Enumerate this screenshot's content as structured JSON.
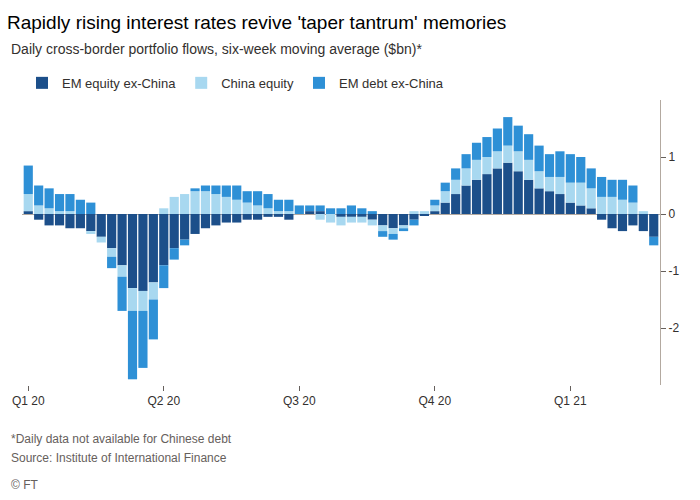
{
  "chart_data": {
    "type": "bar",
    "title": "Rapidly rising interest rates revive 'taper tantrum' memories",
    "subtitle": "Daily cross-border portfolio flows, six-week moving average ($bn)*",
    "annotations": [
      "*Daily data not available for Chinese debt",
      "Source: Institute of International Finance",
      "© FT"
    ],
    "stacked": true,
    "legend": "top left",
    "grid": false,
    "categories": [
      "Q1 20",
      null,
      null,
      null,
      null,
      null,
      null,
      null,
      null,
      null,
      null,
      null,
      null,
      "Q2 20",
      null,
      null,
      null,
      null,
      null,
      null,
      null,
      null,
      null,
      null,
      null,
      null,
      "Q3 20",
      null,
      null,
      null,
      null,
      null,
      null,
      null,
      null,
      null,
      null,
      null,
      null,
      "Q4 20",
      null,
      null,
      null,
      null,
      null,
      null,
      null,
      null,
      null,
      null,
      null,
      null,
      "Q1 21",
      null,
      null,
      null,
      null,
      null,
      null,
      null,
      null
    ],
    "series": [
      {
        "name": "EM equity ex-China",
        "color": "#1c4f8a",
        "values": [
          0.05,
          -0.1,
          -0.2,
          -0.2,
          -0.25,
          -0.25,
          -0.3,
          -0.4,
          -0.6,
          -0.9,
          -1.3,
          -1.35,
          -1.2,
          -0.9,
          -0.6,
          -0.45,
          -0.35,
          -0.25,
          -0.2,
          -0.15,
          -0.15,
          -0.1,
          -0.1,
          -0.05,
          -0.05,
          -0.1,
          0.0,
          0.05,
          0.05,
          0.0,
          -0.05,
          -0.05,
          -0.05,
          -0.1,
          -0.2,
          -0.25,
          -0.2,
          -0.1,
          -0.02,
          0.05,
          0.2,
          0.35,
          0.5,
          0.6,
          0.7,
          0.8,
          0.9,
          0.75,
          0.6,
          0.45,
          0.4,
          0.35,
          0.2,
          0.15,
          0.1,
          -0.1,
          -0.25,
          -0.3,
          -0.2,
          -0.3,
          -0.4
        ]
      },
      {
        "name": "China equity",
        "color": "#a8d8f0",
        "values": [
          0.3,
          0.15,
          0.1,
          0.05,
          0.05,
          0.0,
          -0.05,
          -0.1,
          -0.15,
          -0.2,
          -0.4,
          -0.35,
          -0.3,
          0.1,
          0.3,
          0.35,
          0.4,
          0.4,
          0.35,
          0.3,
          0.25,
          0.2,
          0.15,
          0.1,
          0.05,
          0.05,
          0.0,
          0.0,
          -0.1,
          -0.15,
          -0.15,
          -0.1,
          -0.1,
          -0.1,
          -0.1,
          -0.1,
          -0.05,
          0.05,
          0.05,
          0.1,
          0.2,
          0.25,
          0.3,
          0.35,
          0.3,
          0.3,
          0.3,
          0.35,
          0.35,
          0.3,
          0.25,
          0.3,
          0.35,
          0.4,
          0.35,
          0.3,
          0.3,
          0.25,
          0.2,
          0.05,
          0.0
        ]
      },
      {
        "name": "EM debt ex-China",
        "color": "#2e90d6",
        "values": [
          0.5,
          0.35,
          0.35,
          0.3,
          0.3,
          0.25,
          0.2,
          0.0,
          -0.2,
          -0.6,
          -1.2,
          -1.0,
          -0.7,
          -0.4,
          -0.2,
          -0.1,
          0.05,
          0.1,
          0.15,
          0.2,
          0.25,
          0.2,
          0.25,
          0.25,
          0.2,
          0.2,
          0.15,
          0.1,
          0.1,
          0.1,
          0.1,
          0.15,
          0.1,
          0.05,
          -0.1,
          -0.1,
          -0.05,
          -0.1,
          0.0,
          0.1,
          0.15,
          0.2,
          0.25,
          0.3,
          0.35,
          0.4,
          0.5,
          0.45,
          0.45,
          0.45,
          0.4,
          0.45,
          0.5,
          0.45,
          0.35,
          0.35,
          0.3,
          0.35,
          0.3,
          0.0,
          -0.15
        ]
      }
    ],
    "ylim": [
      -3,
      2
    ],
    "yticks": [
      -2,
      -1,
      0,
      1
    ]
  }
}
